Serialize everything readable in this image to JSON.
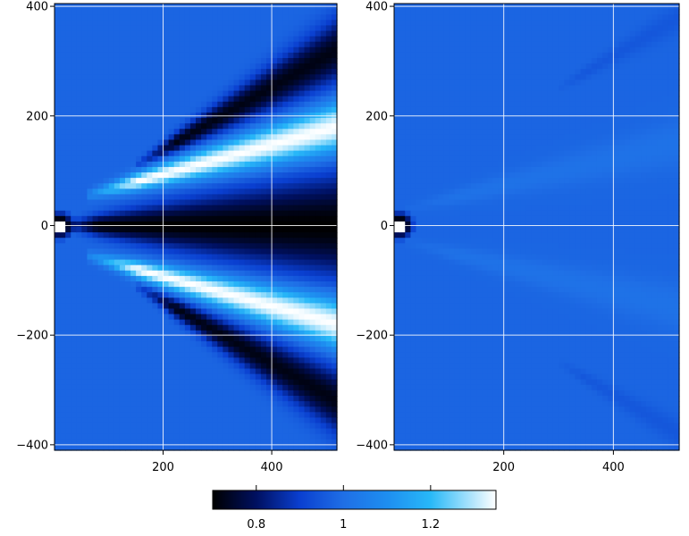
{
  "chart_data": [
    {
      "type": "heatmap",
      "title": "",
      "xlabel": "",
      "ylabel": "",
      "xlim": [
        0,
        520
      ],
      "ylim": [
        -410,
        405
      ],
      "xticks": [
        200,
        400
      ],
      "xtick_labels": [
        "200",
        "400"
      ],
      "yticks": [
        400,
        200,
        0,
        -200,
        -400
      ],
      "ytick_labels": [
        "400",
        "200",
        "0",
        "−200",
        "−400"
      ],
      "grid": true,
      "background_value": 0.98,
      "features": [
        {
          "kind": "source",
          "x": 10,
          "y": 0,
          "value_center": 1.35,
          "value_rim": 0.7
        },
        {
          "kind": "axis-trough",
          "x_start": 20,
          "x_end": 520,
          "y": 0,
          "half_width_start": 8,
          "half_width_end": 95,
          "value": 0.7
        },
        {
          "kind": "beam",
          "x_start": 60,
          "x_end": 520,
          "y_start": 55,
          "y_end": 180,
          "width_start": 12,
          "width_end": 65,
          "value": 1.35
        },
        {
          "kind": "beam",
          "x_start": 60,
          "x_end": 520,
          "y_start": -55,
          "y_end": -180,
          "width_start": 12,
          "width_end": 65,
          "value": 1.35
        },
        {
          "kind": "outer-shadow",
          "x_start": 150,
          "x_end": 520,
          "y_start": 110,
          "y_end": 320,
          "width_start": 10,
          "width_end": 80,
          "value": 0.72
        },
        {
          "kind": "outer-shadow",
          "x_start": 150,
          "x_end": 520,
          "y_start": -110,
          "y_end": -320,
          "width_start": 10,
          "width_end": 80,
          "value": 0.72
        }
      ]
    },
    {
      "type": "heatmap",
      "title": "",
      "xlabel": "",
      "ylabel": "",
      "xlim": [
        0,
        520
      ],
      "ylim": [
        -410,
        405
      ],
      "xticks": [
        200,
        400
      ],
      "xtick_labels": [
        "200",
        "400"
      ],
      "yticks": [
        400,
        200,
        0,
        -200,
        -400
      ],
      "ytick_labels": [
        "400",
        "200",
        "0",
        "−200",
        "−400"
      ],
      "grid": true,
      "background_value": 0.98,
      "features": [
        {
          "kind": "source",
          "x": 10,
          "y": 0,
          "value_center": 1.35,
          "value_rim": 0.7
        },
        {
          "kind": "faint-stripe",
          "x_start": 20,
          "x_end": 520,
          "y_start": 30,
          "y_end": 150,
          "width_start": 10,
          "width_end": 60,
          "value": 1.01
        },
        {
          "kind": "faint-stripe",
          "x_start": 20,
          "x_end": 520,
          "y_start": -30,
          "y_end": -150,
          "width_start": 10,
          "width_end": 60,
          "value": 1.01
        },
        {
          "kind": "faint-shadow",
          "x_start": 300,
          "x_end": 520,
          "y_start": 250,
          "y_end": 380,
          "width_start": 10,
          "width_end": 40,
          "value": 0.95
        },
        {
          "kind": "faint-shadow",
          "x_start": 300,
          "x_end": 520,
          "y_start": -250,
          "y_end": -380,
          "width_start": 10,
          "width_end": 40,
          "value": 0.95
        }
      ]
    }
  ],
  "colorbar": {
    "vmin": 0.7,
    "vmax": 1.35,
    "ticks": [
      0.8,
      1,
      1.2
    ],
    "tick_labels": [
      "0.8",
      "1",
      "1.2"
    ],
    "stops": [
      {
        "value": 0.7,
        "color": "#000000"
      },
      {
        "value": 0.8,
        "color": "#001060"
      },
      {
        "value": 0.9,
        "color": "#0a3fd0"
      },
      {
        "value": 1.0,
        "color": "#1f6fe6"
      },
      {
        "value": 1.1,
        "color": "#1e8ef0"
      },
      {
        "value": 1.2,
        "color": "#28b8f8"
      },
      {
        "value": 1.35,
        "color": "#ffffff"
      }
    ]
  }
}
